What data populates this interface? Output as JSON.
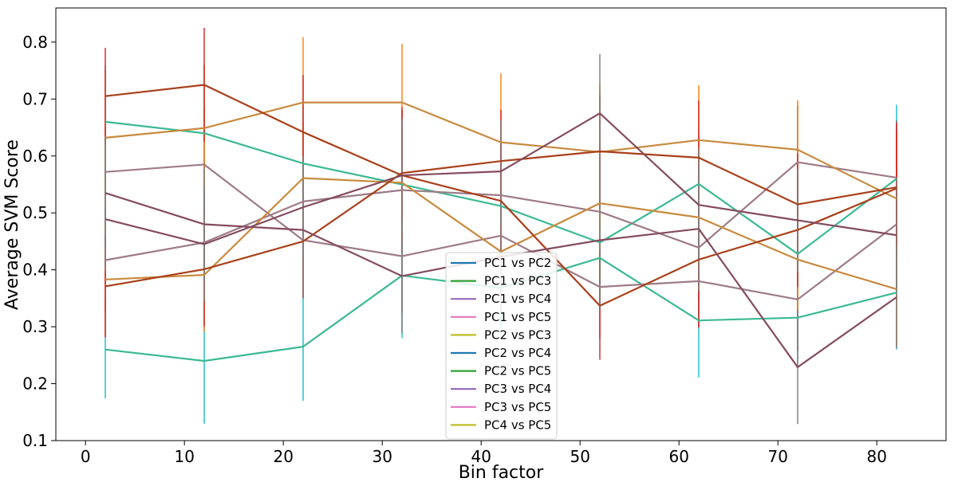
{
  "chart_data": {
    "type": "line",
    "title": "",
    "xlabel": "Bin factor",
    "ylabel": "Average SVM Score",
    "xlim": [
      -3,
      87
    ],
    "ylim": [
      0.1,
      0.86
    ],
    "xticks": [
      0,
      10,
      20,
      30,
      40,
      50,
      60,
      70,
      80
    ],
    "yticks": [
      0.1,
      0.2,
      0.3,
      0.4,
      0.5,
      0.6,
      0.7,
      0.8
    ],
    "x": [
      2,
      12,
      22,
      32,
      42,
      52,
      62,
      72,
      82
    ],
    "legend_position": "lower-center",
    "grid": false,
    "series": [
      {
        "name": "PC1 vs PC2",
        "color": "#1f77b4",
        "line_color": "#3cb993",
        "err_color": "#17becf",
        "values": [
          0.66,
          0.64,
          0.587,
          0.55,
          0.512,
          0.448,
          0.551,
          0.428,
          0.56
        ],
        "err": [
          0.1,
          0.12,
          0.1,
          0.13,
          0.1,
          0.1,
          0.09,
          0.1,
          0.13
        ]
      },
      {
        "name": "PC1 vs PC3",
        "color": "#2ca02c",
        "line_color": "#3cb993",
        "err_color": "#17becf",
        "values": [
          0.26,
          0.24,
          0.265,
          0.39,
          0.368,
          0.421,
          0.311,
          0.316,
          0.36
        ],
        "err": [
          0.086,
          0.11,
          0.095,
          0.11,
          0.08,
          0.09,
          0.1,
          0.08,
          0.1
        ]
      },
      {
        "name": "PC1 vs PC4",
        "color": "#9467bd",
        "line_color": "#9d7b88",
        "err_color": "#8c564b",
        "values": [
          0.572,
          0.585,
          0.452,
          0.424,
          0.46,
          0.37,
          0.38,
          0.348,
          0.48
        ],
        "err": [
          0.08,
          0.1,
          0.1,
          0.1,
          0.08,
          0.09,
          0.08,
          0.09,
          0.1
        ]
      },
      {
        "name": "PC1 vs PC5",
        "color": "#e377c2",
        "line_color": "#9d7b88",
        "err_color": "#8c564b",
        "values": [
          0.417,
          0.448,
          0.52,
          0.54,
          0.531,
          0.502,
          0.439,
          0.589,
          0.562
        ],
        "err": [
          0.09,
          0.1,
          0.1,
          0.11,
          0.09,
          0.09,
          0.09,
          0.1,
          0.1
        ]
      },
      {
        "name": "PC2 vs PC3",
        "color": "#bcbd22",
        "line_color": "#c88a3e",
        "err_color": "#ff7f0e",
        "values": [
          0.632,
          0.649,
          0.694,
          0.694,
          0.624,
          0.607,
          0.628,
          0.611,
          0.525
        ],
        "err": [
          0.12,
          0.11,
          0.115,
          0.103,
          0.121,
          0.12,
          0.096,
          0.087,
          0.12
        ]
      },
      {
        "name": "PC2 vs PC4",
        "color": "#1f77b4",
        "line_color": "#c88a3e",
        "err_color": "#ff7f0e",
        "values": [
          0.383,
          0.391,
          0.561,
          0.553,
          0.432,
          0.517,
          0.492,
          0.418,
          0.366
        ],
        "err": [
          0.1,
          0.1,
          0.1,
          0.1,
          0.09,
          0.1,
          0.09,
          0.09,
          0.1
        ]
      },
      {
        "name": "PC2 vs PC5",
        "color": "#2ca02c",
        "line_color": "#a8401a",
        "err_color": "#d62728",
        "values": [
          0.705,
          0.725,
          0.642,
          0.566,
          0.521,
          0.337,
          0.418,
          0.47,
          0.543
        ],
        "err": [
          0.085,
          0.1,
          0.1,
          0.12,
          0.1,
          0.095,
          0.12,
          0.1,
          0.115
        ]
      },
      {
        "name": "PC3 vs PC4",
        "color": "#9467bd",
        "line_color": "#a8401a",
        "err_color": "#d62728",
        "values": [
          0.371,
          0.401,
          0.45,
          0.57,
          0.591,
          0.608,
          0.597,
          0.515,
          0.545
        ],
        "err": [
          0.09,
          0.1,
          0.1,
          0.11,
          0.09,
          0.1,
          0.1,
          0.09,
          0.1
        ]
      },
      {
        "name": "PC3 vs PC5",
        "color": "#e377c2",
        "line_color": "#844c5e",
        "err_color": "#7f7f7f",
        "values": [
          0.535,
          0.48,
          0.47,
          0.389,
          0.423,
          0.452,
          0.472,
          0.229,
          0.352
        ],
        "err": [
          0.1,
          0.1,
          0.12,
          0.1,
          0.1,
          0.12,
          0.11,
          0.1,
          0.09
        ]
      },
      {
        "name": "PC4 vs PC5",
        "color": "#bcbd22",
        "line_color": "#844c5e",
        "err_color": "#7f7f7f",
        "values": [
          0.489,
          0.445,
          0.51,
          0.566,
          0.573,
          0.675,
          0.514,
          0.487,
          0.461
        ],
        "err": [
          0.09,
          0.1,
          0.09,
          0.1,
          0.09,
          0.104,
          0.1,
          0.09,
          0.1
        ]
      }
    ]
  }
}
